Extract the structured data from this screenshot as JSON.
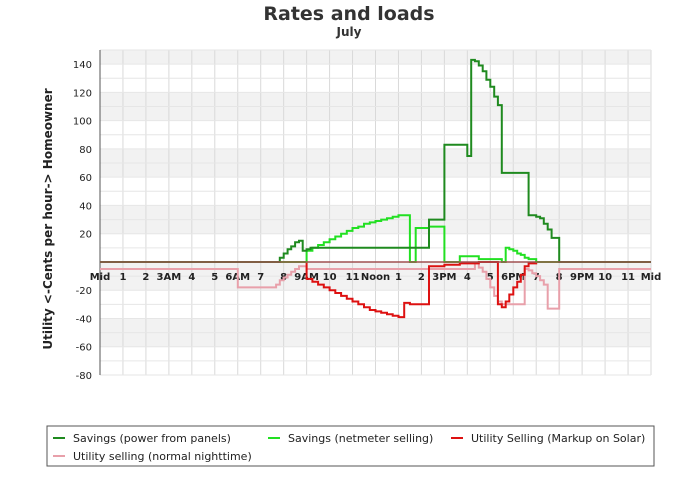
{
  "chart_data": {
    "type": "line",
    "step": true,
    "title": "Rates and loads",
    "subtitle": "July",
    "ylabel": "Utility <-Cents per hour-> Homeowner",
    "xlabel": "",
    "ylim": [
      -80,
      150
    ],
    "yticks": [
      -80,
      -60,
      -40,
      -20,
      20,
      40,
      60,
      80,
      100,
      120,
      140
    ],
    "xlim": [
      0,
      24
    ],
    "xtick_labels": [
      "Mid",
      "1",
      "2",
      "3AM",
      "4",
      "5",
      "6AM",
      "7",
      "8",
      "9AM",
      "10",
      "11",
      "Noon",
      "1",
      "2",
      "3PM",
      "4",
      "5",
      "6PM",
      "7",
      "8",
      "9PM",
      "10",
      "11",
      "Mid"
    ],
    "zero_line": 0,
    "grid": true,
    "legend": "bottom",
    "series": [
      {
        "name": "Savings (power from panels)",
        "color": "#1f8a1f",
        "x": [
          0,
          7.67,
          7.83,
          8,
          8.17,
          8.33,
          8.5,
          8.67,
          8.83,
          9,
          9.17,
          13.5,
          14.33,
          15,
          16,
          16.17,
          16.33,
          16.5,
          16.67,
          16.83,
          17,
          17.17,
          17.33,
          17.5,
          18,
          18.67,
          19.0,
          19.17,
          19.33,
          19.5,
          19.67,
          20
        ],
        "y": [
          0,
          0,
          3,
          6,
          9,
          11,
          14,
          15,
          8,
          9,
          10,
          10,
          30,
          83,
          75,
          143,
          142,
          139,
          135,
          129,
          124,
          117,
          111,
          63,
          63,
          33,
          32,
          31,
          27,
          23,
          17,
          0
        ]
      },
      {
        "name": "Savings (netmeter selling)",
        "color": "#22e022",
        "x": [
          0,
          8.83,
          9.0,
          9.25,
          9.5,
          9.75,
          10,
          10.25,
          10.5,
          10.75,
          11,
          11.25,
          11.5,
          11.75,
          12,
          12.25,
          12.5,
          12.75,
          13,
          13.25,
          13.5,
          13.75,
          14.33,
          15.0,
          15.67,
          16.5,
          17.5,
          17.67,
          17.83,
          18.0,
          18.17,
          18.33,
          18.5,
          18.67,
          19
        ],
        "y": [
          0,
          0,
          8,
          10,
          12,
          14,
          16,
          18,
          20,
          22,
          24,
          25,
          27,
          28,
          29,
          30,
          31,
          32,
          33,
          33,
          0,
          24,
          25,
          0,
          4,
          2,
          0,
          10,
          9,
          8,
          6,
          5,
          3,
          2,
          0
        ]
      },
      {
        "name": "Utility Selling (Markup on Solar)",
        "color": "#dd1111",
        "x": [
          0,
          9.0,
          9.25,
          9.5,
          9.75,
          10,
          10.25,
          10.5,
          10.75,
          11,
          11.25,
          11.5,
          11.75,
          12,
          12.25,
          12.5,
          12.75,
          13,
          13.25,
          13.5,
          13.75,
          14.33,
          15,
          15.67,
          16.5,
          17.33,
          17.5,
          17.67,
          17.83,
          18.0,
          18.17,
          18.33,
          18.5,
          18.67,
          19
        ],
        "y": [
          0,
          -12,
          -14,
          -16,
          -18,
          -20,
          -22,
          -24,
          -26,
          -28,
          -30,
          -32,
          -34,
          -35,
          -36,
          -37,
          -38,
          -39,
          -29,
          -30,
          -30,
          -3,
          -2,
          -1,
          0,
          -30,
          -32,
          -28,
          -23,
          -18,
          -14,
          -9,
          -3,
          -1,
          0
        ]
      },
      {
        "name": "Utility selling (normal nighttime)",
        "color": "#e8a0aa",
        "x": [
          0,
          6.0,
          7.67,
          7.83,
          8,
          8.17,
          8.33,
          8.5,
          8.67,
          9,
          16.33,
          16.5,
          16.67,
          16.83,
          17,
          17.17,
          17.33,
          17.5,
          18.5,
          18.67,
          18.83,
          19,
          19.17,
          19.33,
          19.5,
          20.0
        ],
        "y": [
          -5,
          -18,
          -16,
          -13,
          -11,
          -9,
          -7,
          -5,
          -3,
          -5,
          -1,
          -4,
          -7,
          -12,
          -18,
          -24,
          -28,
          -30,
          -5,
          -6,
          -8,
          -10,
          -13,
          -16,
          -33,
          -5
        ]
      }
    ]
  }
}
